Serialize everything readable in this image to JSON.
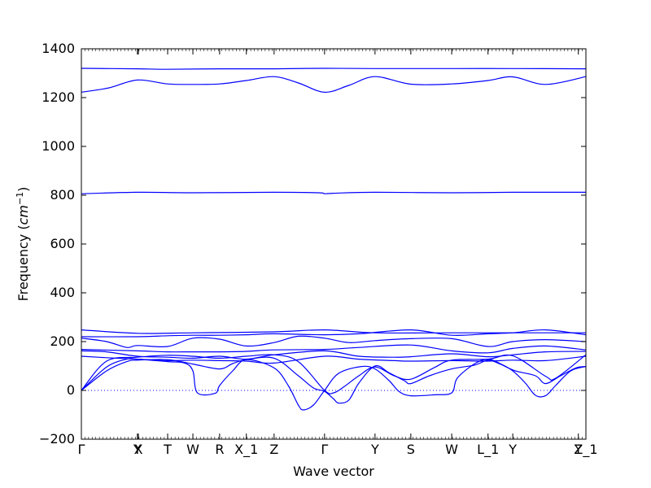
{
  "chart_data": {
    "type": "line",
    "title": "",
    "xlabel": "Wave vector",
    "ylabel": "Frequency ($cm^{-1}$)",
    "ylim": [
      -200,
      1400
    ],
    "xlim": [
      0,
      1
    ],
    "yticks": [
      -200,
      0,
      200,
      400,
      600,
      800,
      1000,
      1200,
      1400
    ],
    "line_color": "#0000ff",
    "zero_line_color": "#0000ff",
    "x_points": [
      {
        "label": "Γ",
        "x": 0.0
      },
      {
        "label": "Y",
        "x": 0.111
      },
      {
        "label": "X",
        "x": 0.113
      },
      {
        "label": "T",
        "x": 0.171
      },
      {
        "label": "W",
        "x": 0.221
      },
      {
        "label": "R",
        "x": 0.274
      },
      {
        "label": "X_1",
        "x": 0.327
      },
      {
        "label": "Z",
        "x": 0.382
      },
      {
        "label": "Γ",
        "x": 0.482
      },
      {
        "label": "Y",
        "x": 0.582
      },
      {
        "label": "S",
        "x": 0.653
      },
      {
        "label": "W",
        "x": 0.734
      },
      {
        "label": "L_1",
        "x": 0.806
      },
      {
        "label": "Y",
        "x": 0.855
      },
      {
        "label": "Y",
        "x": 0.985
      },
      {
        "label": "Z_1",
        "x": 1.0
      }
    ],
    "series": [
      {
        "points": [
          [
            0,
            1320
          ],
          [
            0.111,
            1318
          ],
          [
            0.171,
            1316
          ],
          [
            0.274,
            1318
          ],
          [
            0.382,
            1318
          ],
          [
            0.482,
            1320
          ],
          [
            0.582,
            1319
          ],
          [
            0.734,
            1319
          ],
          [
            0.855,
            1319
          ],
          [
            1.0,
            1318
          ]
        ]
      },
      {
        "points": [
          [
            0,
            1222
          ],
          [
            0.055,
            1240
          ],
          [
            0.111,
            1272
          ],
          [
            0.171,
            1256
          ],
          [
            0.221,
            1254
          ],
          [
            0.274,
            1256
          ],
          [
            0.327,
            1270
          ],
          [
            0.382,
            1286
          ],
          [
            0.43,
            1260
          ],
          [
            0.482,
            1222
          ],
          [
            0.53,
            1250
          ],
          [
            0.582,
            1286
          ],
          [
            0.653,
            1255
          ],
          [
            0.734,
            1256
          ],
          [
            0.806,
            1270
          ],
          [
            0.855,
            1285
          ],
          [
            0.92,
            1254
          ],
          [
            1.0,
            1286
          ]
        ]
      },
      {
        "points": [
          [
            0,
            806
          ],
          [
            0.111,
            812
          ],
          [
            0.221,
            810
          ],
          [
            0.382,
            812
          ],
          [
            0.47,
            810
          ],
          [
            0.482,
            806
          ],
          [
            0.5,
            808
          ],
          [
            0.582,
            812
          ],
          [
            0.734,
            810
          ],
          [
            0.855,
            812
          ],
          [
            1.0,
            812
          ]
        ]
      },
      {
        "points": [
          [
            0,
            248
          ],
          [
            0.111,
            234
          ],
          [
            0.221,
            236
          ],
          [
            0.382,
            240
          ],
          [
            0.482,
            248
          ],
          [
            0.582,
            236
          ],
          [
            0.734,
            236
          ],
          [
            0.855,
            236
          ],
          [
            1.0,
            236
          ]
        ]
      },
      {
        "points": [
          [
            0,
            220
          ],
          [
            0.111,
            220
          ],
          [
            0.171,
            224
          ],
          [
            0.221,
            226
          ],
          [
            0.274,
            226
          ],
          [
            0.327,
            228
          ],
          [
            0.382,
            232
          ],
          [
            0.482,
            228
          ],
          [
            0.55,
            232
          ],
          [
            0.653,
            248
          ],
          [
            0.734,
            226
          ],
          [
            0.806,
            232
          ],
          [
            0.855,
            236
          ],
          [
            0.92,
            248
          ],
          [
            1.0,
            228
          ]
        ]
      },
      {
        "points": [
          [
            0,
            214
          ],
          [
            0.05,
            200
          ],
          [
            0.09,
            176
          ],
          [
            0.111,
            184
          ],
          [
            0.171,
            180
          ],
          [
            0.221,
            214
          ],
          [
            0.274,
            210
          ],
          [
            0.327,
            182
          ],
          [
            0.382,
            196
          ],
          [
            0.43,
            222
          ],
          [
            0.482,
            214
          ],
          [
            0.53,
            196
          ],
          [
            0.582,
            204
          ],
          [
            0.653,
            212
          ],
          [
            0.734,
            212
          ],
          [
            0.806,
            180
          ],
          [
            0.855,
            200
          ],
          [
            0.92,
            208
          ],
          [
            1.0,
            200
          ]
        ]
      },
      {
        "points": [
          [
            0,
            168
          ],
          [
            0.111,
            162
          ],
          [
            0.171,
            158
          ],
          [
            0.221,
            158
          ],
          [
            0.274,
            158
          ],
          [
            0.327,
            160
          ],
          [
            0.382,
            166
          ],
          [
            0.482,
            168
          ],
          [
            0.55,
            176
          ],
          [
            0.653,
            186
          ],
          [
            0.734,
            162
          ],
          [
            0.806,
            154
          ],
          [
            0.855,
            172
          ],
          [
            0.92,
            182
          ],
          [
            1.0,
            166
          ]
        ]
      },
      {
        "points": [
          [
            0,
            162
          ],
          [
            0.05,
            158
          ],
          [
            0.111,
            140
          ],
          [
            0.171,
            136
          ],
          [
            0.221,
            132
          ],
          [
            0.274,
            140
          ],
          [
            0.327,
            128
          ],
          [
            0.382,
            146
          ],
          [
            0.482,
            162
          ],
          [
            0.55,
            140
          ],
          [
            0.62,
            136
          ],
          [
            0.653,
            138
          ],
          [
            0.734,
            150
          ],
          [
            0.806,
            138
          ],
          [
            0.855,
            146
          ],
          [
            0.92,
            158
          ],
          [
            1.0,
            160
          ]
        ]
      },
      {
        "points": [
          [
            0,
            140
          ],
          [
            0.05,
            134
          ],
          [
            0.111,
            128
          ],
          [
            0.171,
            122
          ],
          [
            0.221,
            124
          ],
          [
            0.274,
            122
          ],
          [
            0.327,
            120
          ],
          [
            0.382,
            112
          ],
          [
            0.482,
            140
          ],
          [
            0.55,
            128
          ],
          [
            0.62,
            122
          ],
          [
            0.653,
            120
          ],
          [
            0.734,
            122
          ],
          [
            0.806,
            120
          ],
          [
            0.855,
            124
          ],
          [
            0.92,
            122
          ],
          [
            1.0,
            140
          ]
        ]
      },
      {
        "points": [
          [
            0,
            0
          ],
          [
            0.05,
            96
          ],
          [
            0.09,
            128
          ],
          [
            0.111,
            128
          ],
          [
            0.171,
            118
          ],
          [
            0.205,
            112
          ],
          [
            0.221,
            80
          ],
          [
            0.23,
            -10
          ],
          [
            0.265,
            -12
          ],
          [
            0.274,
            20
          ],
          [
            0.3,
            80
          ],
          [
            0.327,
            126
          ],
          [
            0.382,
            92
          ],
          [
            0.41,
            20
          ],
          [
            0.43,
            -60
          ],
          [
            0.44,
            -80
          ],
          [
            0.46,
            -60
          ],
          [
            0.482,
            0
          ],
          [
            0.51,
            70
          ],
          [
            0.555,
            98
          ],
          [
            0.582,
            88
          ],
          [
            0.61,
            40
          ],
          [
            0.63,
            -5
          ],
          [
            0.653,
            -22
          ],
          [
            0.7,
            -18
          ],
          [
            0.734,
            -10
          ],
          [
            0.745,
            50
          ],
          [
            0.78,
            110
          ],
          [
            0.806,
            128
          ],
          [
            0.83,
            110
          ],
          [
            0.855,
            80
          ],
          [
            0.88,
            30
          ],
          [
            0.9,
            -20
          ],
          [
            0.92,
            -22
          ],
          [
            0.94,
            20
          ],
          [
            0.97,
            80
          ],
          [
            1.0,
            98
          ]
        ]
      },
      {
        "points": [
          [
            0,
            0
          ],
          [
            0.05,
            80
          ],
          [
            0.09,
            118
          ],
          [
            0.111,
            124
          ],
          [
            0.171,
            126
          ],
          [
            0.221,
            108
          ],
          [
            0.274,
            88
          ],
          [
            0.3,
            110
          ],
          [
            0.327,
            126
          ],
          [
            0.382,
            132
          ],
          [
            0.43,
            60
          ],
          [
            0.46,
            10
          ],
          [
            0.482,
            -4
          ],
          [
            0.5,
            -35
          ],
          [
            0.51,
            -52
          ],
          [
            0.53,
            -40
          ],
          [
            0.55,
            30
          ],
          [
            0.582,
            100
          ],
          [
            0.61,
            72
          ],
          [
            0.64,
            40
          ],
          [
            0.653,
            28
          ],
          [
            0.69,
            60
          ],
          [
            0.734,
            88
          ],
          [
            0.78,
            104
          ],
          [
            0.806,
            124
          ],
          [
            0.83,
            108
          ],
          [
            0.86,
            80
          ],
          [
            0.9,
            60
          ],
          [
            0.92,
            28
          ],
          [
            0.95,
            60
          ],
          [
            0.98,
            92
          ],
          [
            1.0,
            98
          ]
        ]
      },
      {
        "points": [
          [
            0,
            0
          ],
          [
            0.05,
            120
          ],
          [
            0.111,
            136
          ],
          [
            0.171,
            144
          ],
          [
            0.221,
            140
          ],
          [
            0.274,
            132
          ],
          [
            0.327,
            140
          ],
          [
            0.382,
            146
          ],
          [
            0.43,
            118
          ],
          [
            0.482,
            0
          ],
          [
            0.5,
            -10
          ],
          [
            0.52,
            14
          ],
          [
            0.55,
            60
          ],
          [
            0.582,
            96
          ],
          [
            0.62,
            60
          ],
          [
            0.653,
            46
          ],
          [
            0.7,
            94
          ],
          [
            0.734,
            124
          ],
          [
            0.806,
            128
          ],
          [
            0.855,
            142
          ],
          [
            0.92,
            58
          ],
          [
            0.94,
            50
          ],
          [
            1.0,
            146
          ]
        ]
      }
    ]
  }
}
